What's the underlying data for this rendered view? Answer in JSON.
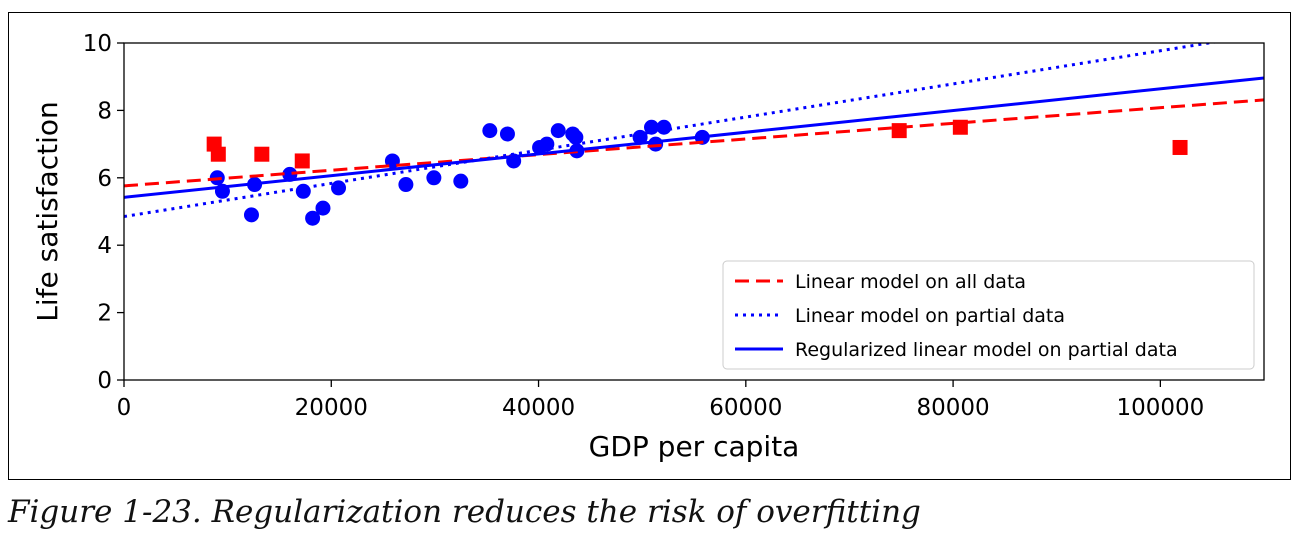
{
  "caption": "Figure 1-23. Regularization reduces the risk of overfitting",
  "chart_data": {
    "type": "scatter",
    "xlabel": "GDP per capita",
    "ylabel": "Life satisfaction",
    "xlim": [
      0,
      110000
    ],
    "ylim": [
      0,
      10
    ],
    "xticks": [
      0,
      20000,
      40000,
      60000,
      80000,
      100000
    ],
    "xtick_labels": [
      "0",
      "20000",
      "40000",
      "60000",
      "80000",
      "100000"
    ],
    "yticks": [
      0,
      2,
      4,
      6,
      8,
      10
    ],
    "ytick_labels": [
      "0",
      "2",
      "4",
      "6",
      "8",
      "10"
    ],
    "grid": false,
    "legend_position": "lower-right",
    "scatter_series": [
      {
        "marker": "circle",
        "color": "#0000ff",
        "points": [
          [
            9000,
            6.0
          ],
          [
            9500,
            5.6
          ],
          [
            12300,
            4.9
          ],
          [
            12600,
            5.8
          ],
          [
            16000,
            6.1
          ],
          [
            17300,
            5.6
          ],
          [
            18200,
            4.8
          ],
          [
            19200,
            5.1
          ],
          [
            20700,
            5.7
          ],
          [
            25900,
            6.5
          ],
          [
            27200,
            5.8
          ],
          [
            29900,
            6.0
          ],
          [
            32500,
            5.9
          ],
          [
            35300,
            7.4
          ],
          [
            37000,
            7.3
          ],
          [
            37600,
            6.5
          ],
          [
            40100,
            6.9
          ],
          [
            40800,
            7.0
          ],
          [
            41900,
            7.4
          ],
          [
            43300,
            7.3
          ],
          [
            43600,
            7.2
          ],
          [
            43700,
            6.8
          ],
          [
            49800,
            7.2
          ],
          [
            50900,
            7.5
          ],
          [
            51300,
            7.0
          ],
          [
            52100,
            7.5
          ],
          [
            55800,
            7.2
          ]
        ]
      },
      {
        "marker": "square",
        "color": "#ff0000",
        "points": [
          [
            8700,
            7.0
          ],
          [
            9100,
            6.7
          ],
          [
            13300,
            6.7
          ],
          [
            17200,
            6.5
          ],
          [
            74800,
            7.4
          ],
          [
            80700,
            7.5
          ],
          [
            101900,
            6.9
          ]
        ]
      }
    ],
    "lines": [
      {
        "name": "Linear model on all data",
        "style": "dashed",
        "color": "#ff0000",
        "intercept": 5.76,
        "slope": 2.32e-05
      },
      {
        "name": "Linear model on partial data",
        "style": "dotted",
        "color": "#0000ff",
        "intercept": 4.85,
        "slope": 4.92e-05
      },
      {
        "name": "Regularized linear model on partial data",
        "style": "solid",
        "color": "#0000ff",
        "intercept": 5.42,
        "slope": 3.22e-05
      }
    ]
  }
}
